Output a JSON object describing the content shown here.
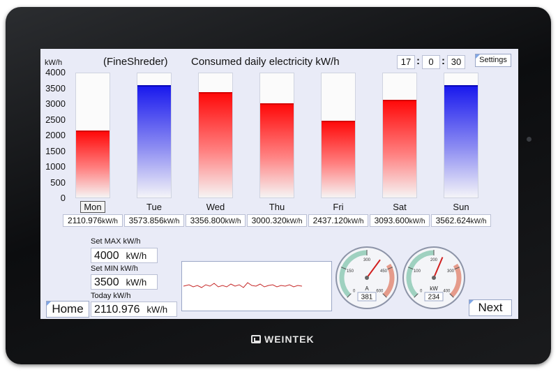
{
  "screen": {
    "unit_top": "kW/h",
    "title_left": "(FineShreder)",
    "title_main": "Consumed daily electricity kW/h",
    "clock": {
      "hour": "17",
      "minute": "0",
      "second": "30",
      "sep": ":"
    },
    "settings_label": "Settings",
    "y_ticks": [
      "4000",
      "3500",
      "3000",
      "2500",
      "2000",
      "1500",
      "1000",
      "500",
      "0"
    ],
    "days": [
      {
        "label": "Mon",
        "value": 2110.976,
        "value_text": "2110.976",
        "color": "red",
        "selected": true
      },
      {
        "label": "Tue",
        "value": 3573.856,
        "value_text": "3573.856",
        "color": "blue",
        "selected": false
      },
      {
        "label": "Wed",
        "value": 3356.8,
        "value_text": "3356.800",
        "color": "red",
        "selected": false
      },
      {
        "label": "Thu",
        "value": 3000.32,
        "value_text": "3000.320",
        "color": "red",
        "selected": false
      },
      {
        "label": "Fri",
        "value": 2437.12,
        "value_text": "2437.120",
        "color": "red",
        "selected": false
      },
      {
        "label": "Sat",
        "value": 3093.6,
        "value_text": "3093.600",
        "color": "red",
        "selected": false
      },
      {
        "label": "Sun",
        "value": 3562.624,
        "value_text": "3562.624",
        "color": "blue",
        "selected": false
      }
    ],
    "value_unit": "kW/h",
    "y_max": 4000,
    "set_max": {
      "label": "Set MAX kW/h",
      "value": "4000",
      "unit": "kW/h"
    },
    "set_min": {
      "label": "Set MIN kW/h",
      "value": "3500",
      "unit": "kW/h"
    },
    "today": {
      "label": "Today kW/h",
      "value": "2110.976",
      "unit": "kW/h"
    },
    "home_label": "Home",
    "next_label": "Next",
    "gauge_a": {
      "unit": "A",
      "value": 381,
      "value_text": "381",
      "min": 0,
      "max": 600,
      "ticks": [
        "0",
        "150",
        "300",
        "450",
        "600"
      ]
    },
    "gauge_kw": {
      "unit": "kW",
      "value": 234,
      "value_text": "234",
      "min": 0,
      "max": 400,
      "ticks": [
        "0",
        "100",
        "200",
        "300",
        "400"
      ]
    },
    "brand": "WEINTEK",
    "colors": {
      "red": "#ff0a0a",
      "blue": "#1a1aee",
      "gauge_green": "#9fd1c0",
      "gauge_red": "#e59b8b",
      "needle": "#d12020"
    }
  }
}
